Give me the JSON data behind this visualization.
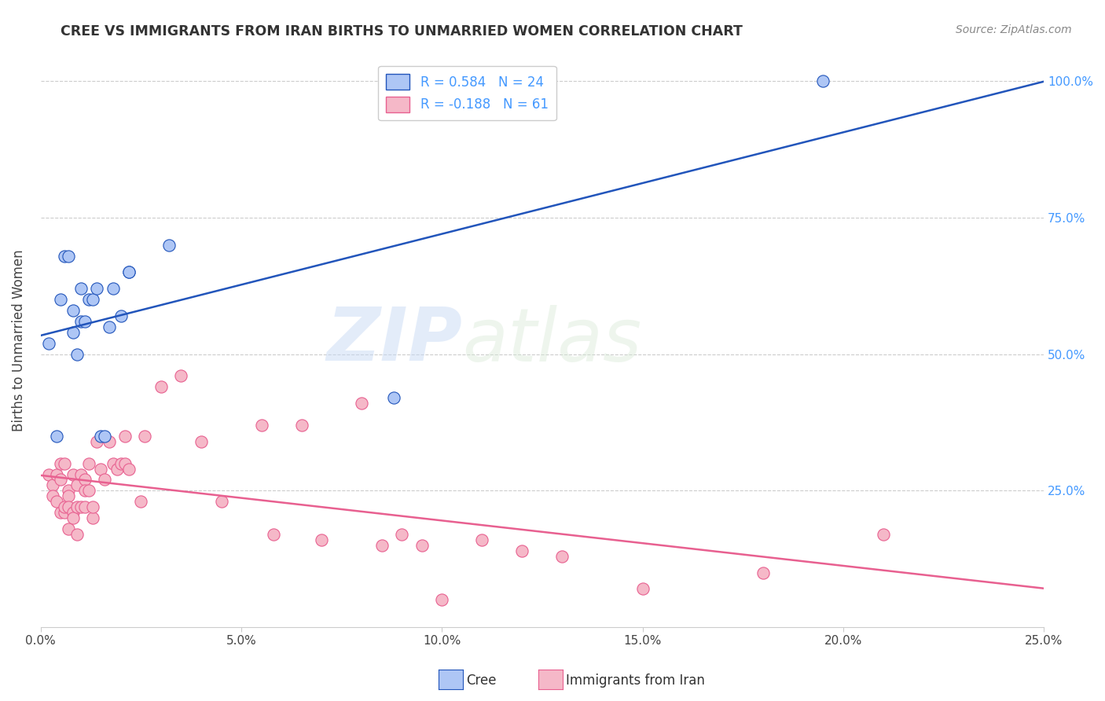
{
  "title": "CREE VS IMMIGRANTS FROM IRAN BIRTHS TO UNMARRIED WOMEN CORRELATION CHART",
  "source": "Source: ZipAtlas.com",
  "ylabel": "Births to Unmarried Women",
  "xlim": [
    0.0,
    0.25
  ],
  "ylim": [
    0.0,
    1.05
  ],
  "xtick_labels": [
    "0.0%",
    "5.0%",
    "10.0%",
    "15.0%",
    "20.0%",
    "25.0%"
  ],
  "xtick_vals": [
    0.0,
    0.05,
    0.1,
    0.15,
    0.2,
    0.25
  ],
  "ytick_labels": [
    "25.0%",
    "50.0%",
    "75.0%",
    "100.0%"
  ],
  "ytick_vals": [
    0.25,
    0.5,
    0.75,
    1.0
  ],
  "cree_color": "#aec6f5",
  "iran_color": "#f5b8c8",
  "trendline_cree_color": "#2255bb",
  "trendline_iran_color": "#e86090",
  "watermark_zip": "ZIP",
  "watermark_atlas": "atlas",
  "cree_x": [
    0.002,
    0.004,
    0.005,
    0.006,
    0.007,
    0.008,
    0.008,
    0.009,
    0.01,
    0.01,
    0.011,
    0.012,
    0.013,
    0.014,
    0.015,
    0.016,
    0.017,
    0.018,
    0.02,
    0.022,
    0.022,
    0.032,
    0.088,
    0.195
  ],
  "cree_y": [
    0.52,
    0.35,
    0.6,
    0.68,
    0.68,
    0.58,
    0.54,
    0.5,
    0.56,
    0.62,
    0.56,
    0.6,
    0.6,
    0.62,
    0.35,
    0.35,
    0.55,
    0.62,
    0.57,
    0.65,
    0.65,
    0.7,
    0.42,
    1.0
  ],
  "iran_x": [
    0.002,
    0.003,
    0.003,
    0.004,
    0.004,
    0.005,
    0.005,
    0.005,
    0.006,
    0.006,
    0.006,
    0.007,
    0.007,
    0.007,
    0.007,
    0.008,
    0.008,
    0.008,
    0.009,
    0.009,
    0.009,
    0.01,
    0.01,
    0.011,
    0.011,
    0.011,
    0.012,
    0.012,
    0.013,
    0.013,
    0.014,
    0.015,
    0.016,
    0.017,
    0.018,
    0.019,
    0.02,
    0.021,
    0.021,
    0.022,
    0.025,
    0.026,
    0.03,
    0.035,
    0.04,
    0.045,
    0.055,
    0.058,
    0.065,
    0.07,
    0.08,
    0.085,
    0.09,
    0.095,
    0.1,
    0.11,
    0.12,
    0.13,
    0.15,
    0.18,
    0.21
  ],
  "iran_y": [
    0.28,
    0.26,
    0.24,
    0.23,
    0.28,
    0.21,
    0.27,
    0.3,
    0.3,
    0.21,
    0.22,
    0.25,
    0.24,
    0.18,
    0.22,
    0.21,
    0.2,
    0.28,
    0.26,
    0.22,
    0.17,
    0.28,
    0.22,
    0.27,
    0.25,
    0.22,
    0.3,
    0.25,
    0.2,
    0.22,
    0.34,
    0.29,
    0.27,
    0.34,
    0.3,
    0.29,
    0.3,
    0.35,
    0.3,
    0.29,
    0.23,
    0.35,
    0.44,
    0.46,
    0.34,
    0.23,
    0.37,
    0.17,
    0.37,
    0.16,
    0.41,
    0.15,
    0.17,
    0.15,
    0.05,
    0.16,
    0.14,
    0.13,
    0.07,
    0.1,
    0.17
  ]
}
